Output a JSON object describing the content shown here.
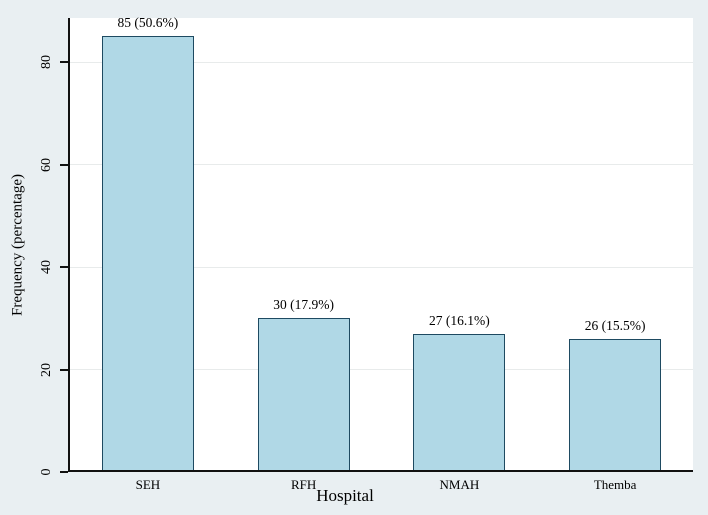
{
  "chart_data": {
    "type": "bar",
    "title": "",
    "xlabel": "Hospital",
    "ylabel": "Frequency (percentage)",
    "categories": [
      "SEH",
      "RFH",
      "NMAH",
      "Themba"
    ],
    "values": [
      85,
      30,
      27,
      26
    ],
    "percentages": [
      50.6,
      17.9,
      16.1,
      15.5
    ],
    "bar_labels": [
      "85 (50.6%)",
      "30 (17.9%)",
      "27 (16.1%)",
      "26 (15.5%)"
    ],
    "yticks": [
      0,
      20,
      40,
      60,
      80
    ],
    "ylim": [
      0,
      88.6
    ],
    "grid": true,
    "legend": "none",
    "colors": {
      "figure_background": "#e9eff2",
      "plot_background": "#ffffff",
      "bar_fill": "#b0d8e6",
      "bar_border": "#1e4a61",
      "gridline": "#e8ebeb",
      "axis": "#111111",
      "text": "#000000"
    }
  }
}
